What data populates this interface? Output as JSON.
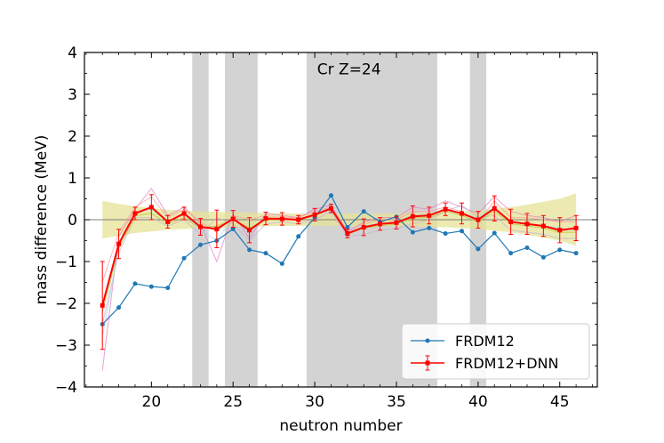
{
  "chart_data": {
    "type": "line",
    "title": "Cr Z=24",
    "xlabel": "neutron number",
    "ylabel": "mass difference (MeV)",
    "xlim": [
      15.9,
      47.3
    ],
    "ylim": [
      -4,
      4
    ],
    "xticks": [
      20,
      25,
      30,
      35,
      40,
      45
    ],
    "xtick_labels": [
      "20",
      "25",
      "30",
      "35",
      "40",
      "45"
    ],
    "yticks": [
      -4,
      -3,
      -2,
      -1,
      0,
      1,
      2,
      3,
      4
    ],
    "ytick_labels": [
      "−4",
      "−3",
      "−2",
      "−1",
      "0",
      "1",
      "2",
      "3",
      "4"
    ],
    "legend_position": "lower-right",
    "shaded_bands": [
      [
        22.5,
        23.5
      ],
      [
        24.5,
        26.5
      ],
      [
        29.5,
        37.5
      ],
      [
        39.5,
        40.5
      ]
    ],
    "uncertainty_band": {
      "x": [
        17,
        18,
        19,
        20,
        21,
        22,
        23,
        24,
        25,
        26,
        27,
        28,
        29,
        30,
        31,
        32,
        33,
        34,
        35,
        36,
        37,
        38,
        39,
        40,
        41,
        42,
        43,
        44,
        45,
        46
      ],
      "half_width": [
        0.45,
        0.38,
        0.32,
        0.28,
        0.24,
        0.22,
        0.2,
        0.19,
        0.18,
        0.17,
        0.16,
        0.15,
        0.15,
        0.15,
        0.15,
        0.15,
        0.15,
        0.15,
        0.15,
        0.16,
        0.17,
        0.18,
        0.2,
        0.22,
        0.26,
        0.3,
        0.36,
        0.43,
        0.5,
        0.63
      ]
    },
    "series": [
      {
        "name": "FRDM12",
        "color": "#1f77b4",
        "x": [
          17,
          18,
          19,
          20,
          21,
          22,
          23,
          24,
          25,
          26,
          27,
          28,
          29,
          30,
          31,
          32,
          33,
          34,
          35,
          36,
          37,
          38,
          39,
          40,
          41,
          42,
          43,
          44,
          45,
          46
        ],
        "y": [
          -2.5,
          -2.1,
          -1.53,
          -1.6,
          -1.63,
          -0.92,
          -0.6,
          -0.5,
          -0.22,
          -0.72,
          -0.8,
          -1.05,
          -0.4,
          0.05,
          0.58,
          -0.18,
          0.2,
          -0.05,
          0.07,
          -0.3,
          -0.2,
          -0.33,
          -0.27,
          -0.7,
          -0.32,
          -0.8,
          -0.67,
          -0.9,
          -0.72,
          -0.8
        ]
      },
      {
        "name": "FRDM12+DNN",
        "color": "#ff0000",
        "x": [
          17,
          18,
          19,
          20,
          21,
          22,
          23,
          24,
          25,
          26,
          27,
          28,
          29,
          30,
          31,
          32,
          33,
          34,
          35,
          36,
          37,
          38,
          39,
          40,
          41,
          42,
          43,
          44,
          45,
          46
        ],
        "y": [
          -2.05,
          -0.58,
          0.15,
          0.3,
          -0.05,
          0.15,
          -0.17,
          -0.22,
          0.02,
          -0.25,
          0.03,
          0.02,
          0.0,
          0.12,
          0.27,
          -0.33,
          -0.18,
          -0.1,
          -0.07,
          0.08,
          0.1,
          0.25,
          0.15,
          0.0,
          0.27,
          -0.05,
          -0.1,
          -0.15,
          -0.25,
          -0.2
        ],
        "yerr": [
          1.05,
          0.35,
          0.15,
          0.3,
          0.15,
          0.15,
          0.2,
          0.45,
          0.2,
          0.3,
          0.15,
          0.15,
          0.1,
          0.15,
          0.1,
          0.1,
          0.2,
          0.15,
          0.15,
          0.25,
          0.2,
          0.15,
          0.25,
          0.2,
          0.3,
          0.3,
          0.25,
          0.25,
          0.3,
          0.3
        ]
      }
    ],
    "ensemble_members": [
      {
        "color": "#e377c2",
        "x": [
          17,
          18,
          19,
          20,
          21,
          22,
          23,
          24,
          25,
          26,
          27,
          28,
          29,
          30,
          31,
          32,
          33,
          34,
          35,
          36,
          37,
          38,
          39,
          40,
          41,
          42,
          43,
          44,
          45,
          46
        ],
        "y": [
          -3.6,
          -0.4,
          0.25,
          0.75,
          0.1,
          0.3,
          -0.1,
          -1.0,
          0.15,
          -0.45,
          0.15,
          0.1,
          0.05,
          0.25,
          0.35,
          -0.3,
          -0.05,
          0.05,
          0.05,
          0.3,
          0.25,
          0.45,
          0.3,
          0.15,
          0.55,
          0.2,
          0.1,
          0.05,
          -0.05,
          0.1
        ]
      },
      {
        "color": "#c5b0d5",
        "x": [
          17,
          18,
          19,
          20,
          21,
          22,
          23,
          24,
          25,
          26,
          27,
          28,
          29,
          30,
          31,
          32,
          33,
          34,
          35,
          36,
          37,
          38,
          39,
          40,
          41,
          42,
          43,
          44,
          45,
          46
        ],
        "y": [
          -2.5,
          -0.8,
          0.05,
          0.05,
          -0.15,
          0.0,
          -0.35,
          0.05,
          -0.1,
          -0.5,
          -0.1,
          -0.05,
          -0.1,
          0.0,
          0.2,
          -0.4,
          -0.35,
          -0.25,
          -0.2,
          -0.1,
          0.0,
          0.2,
          0.35,
          0.05,
          0.1,
          -0.25,
          -0.3,
          -0.35,
          -0.45,
          -0.45
        ]
      },
      {
        "color": "#ff9896",
        "x": [
          17,
          18,
          19,
          20,
          21,
          22,
          23,
          24,
          25,
          26,
          27,
          28,
          29,
          30,
          31,
          32,
          33,
          34,
          35,
          36,
          37,
          38,
          39,
          40,
          41,
          42,
          43,
          44,
          45,
          46
        ],
        "y": [
          -1.5,
          -0.3,
          0.3,
          0.55,
          0.05,
          0.25,
          -0.05,
          -0.3,
          0.1,
          0.0,
          0.1,
          0.05,
          0.05,
          0.2,
          0.3,
          -0.25,
          -0.1,
          0.0,
          0.0,
          0.2,
          0.2,
          0.3,
          0.2,
          -0.05,
          0.45,
          0.05,
          0.05,
          0.0,
          -0.05,
          -0.05
        ]
      },
      {
        "color": "#bcbd22",
        "x": [
          17,
          18,
          19,
          20,
          21,
          22,
          23,
          24,
          25,
          26,
          27,
          28,
          29,
          30,
          31,
          32,
          33,
          34,
          35,
          36,
          37,
          38,
          39,
          40,
          41,
          42,
          43,
          44,
          45,
          46
        ],
        "y": [
          -2.2,
          -0.7,
          0.1,
          0.15,
          -0.1,
          0.05,
          -0.2,
          -0.15,
          0.0,
          -0.2,
          0.0,
          0.0,
          0.0,
          0.1,
          0.25,
          -0.35,
          -0.2,
          -0.15,
          -0.1,
          0.05,
          0.05,
          0.2,
          0.1,
          -0.05,
          0.2,
          -0.1,
          -0.15,
          -0.2,
          -0.3,
          -0.3
        ]
      },
      {
        "color": "#9edae5",
        "x": [
          17,
          18,
          19,
          20,
          21,
          22,
          23,
          24,
          25,
          26,
          27,
          28,
          29,
          30,
          31,
          32,
          33,
          34,
          35,
          36,
          37,
          38,
          39,
          40,
          41,
          42,
          43,
          44,
          45,
          46
        ],
        "y": [
          -2.8,
          -0.65,
          0.18,
          0.25,
          -0.05,
          0.12,
          -0.25,
          -0.5,
          0.05,
          -0.3,
          0.05,
          0.0,
          0.0,
          0.1,
          0.28,
          -0.32,
          -0.15,
          -0.1,
          -0.05,
          0.1,
          0.12,
          0.22,
          0.15,
          0.05,
          0.3,
          -0.05,
          -0.12,
          -0.15,
          -0.2,
          -0.25
        ]
      }
    ]
  }
}
